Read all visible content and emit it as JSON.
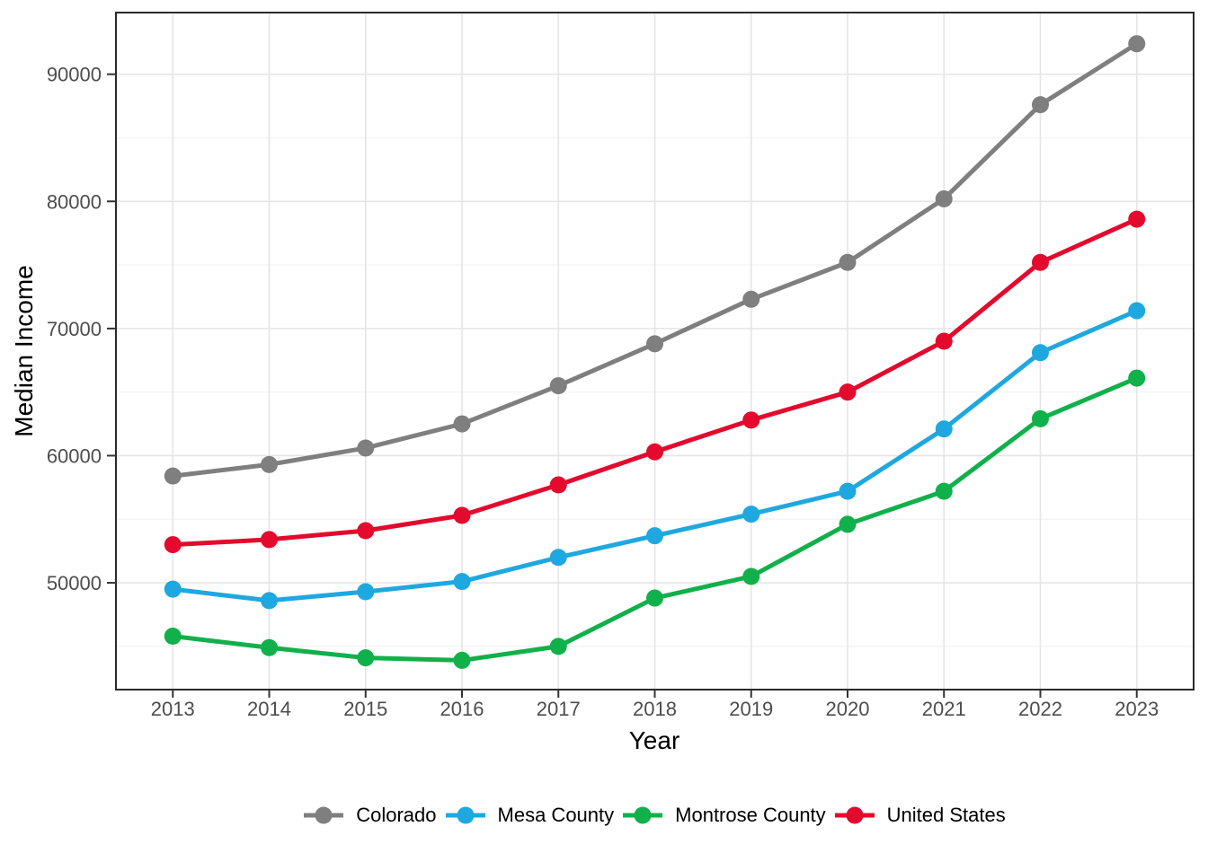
{
  "chart_data": {
    "type": "line",
    "title": "",
    "xlabel": "Year",
    "ylabel": "Median Income",
    "x": [
      2013,
      2014,
      2015,
      2016,
      2017,
      2018,
      2019,
      2020,
      2021,
      2022,
      2023
    ],
    "x_tick_labels": [
      "2013",
      "2014",
      "2015",
      "2016",
      "2017",
      "2018",
      "2019",
      "2020",
      "2021",
      "2022",
      "2023"
    ],
    "y_ticks": [
      50000,
      60000,
      70000,
      80000,
      90000
    ],
    "y_tick_labels": [
      "50000",
      "60000",
      "70000",
      "80000",
      "90000"
    ],
    "y_minor_ticks": [
      45000,
      55000,
      65000,
      75000,
      85000
    ],
    "xlim": [
      2012.41,
      2023.59
    ],
    "ylim": [
      41600,
      94850
    ],
    "grid": true,
    "legend_position": "bottom",
    "series": [
      {
        "name": "Colorado",
        "color": "#7f7f7f",
        "values": [
          58400,
          59300,
          60600,
          62500,
          65500,
          68800,
          72300,
          75200,
          80200,
          87600,
          92400
        ]
      },
      {
        "name": "Mesa County",
        "color": "#1fa8df",
        "values": [
          49500,
          48600,
          49300,
          50100,
          52000,
          53700,
          55400,
          57200,
          62100,
          68100,
          71400
        ]
      },
      {
        "name": "Montrose County",
        "color": "#10b04a",
        "values": [
          45800,
          44900,
          44100,
          43900,
          45000,
          48800,
          50500,
          54600,
          57200,
          62900,
          66100
        ]
      },
      {
        "name": "United States",
        "color": "#e30a2d",
        "values": [
          53000,
          53400,
          54100,
          55300,
          57700,
          60300,
          62800,
          65000,
          69000,
          75200,
          78600
        ]
      }
    ]
  },
  "style_colors": {
    "panel_border": "#2a2a2a",
    "grid_major": "#e5e5e5",
    "grid_minor": "#f2f2f2",
    "tick_mark": "#333333",
    "tick_label": "#4d4d4d",
    "background": "#ffffff"
  }
}
